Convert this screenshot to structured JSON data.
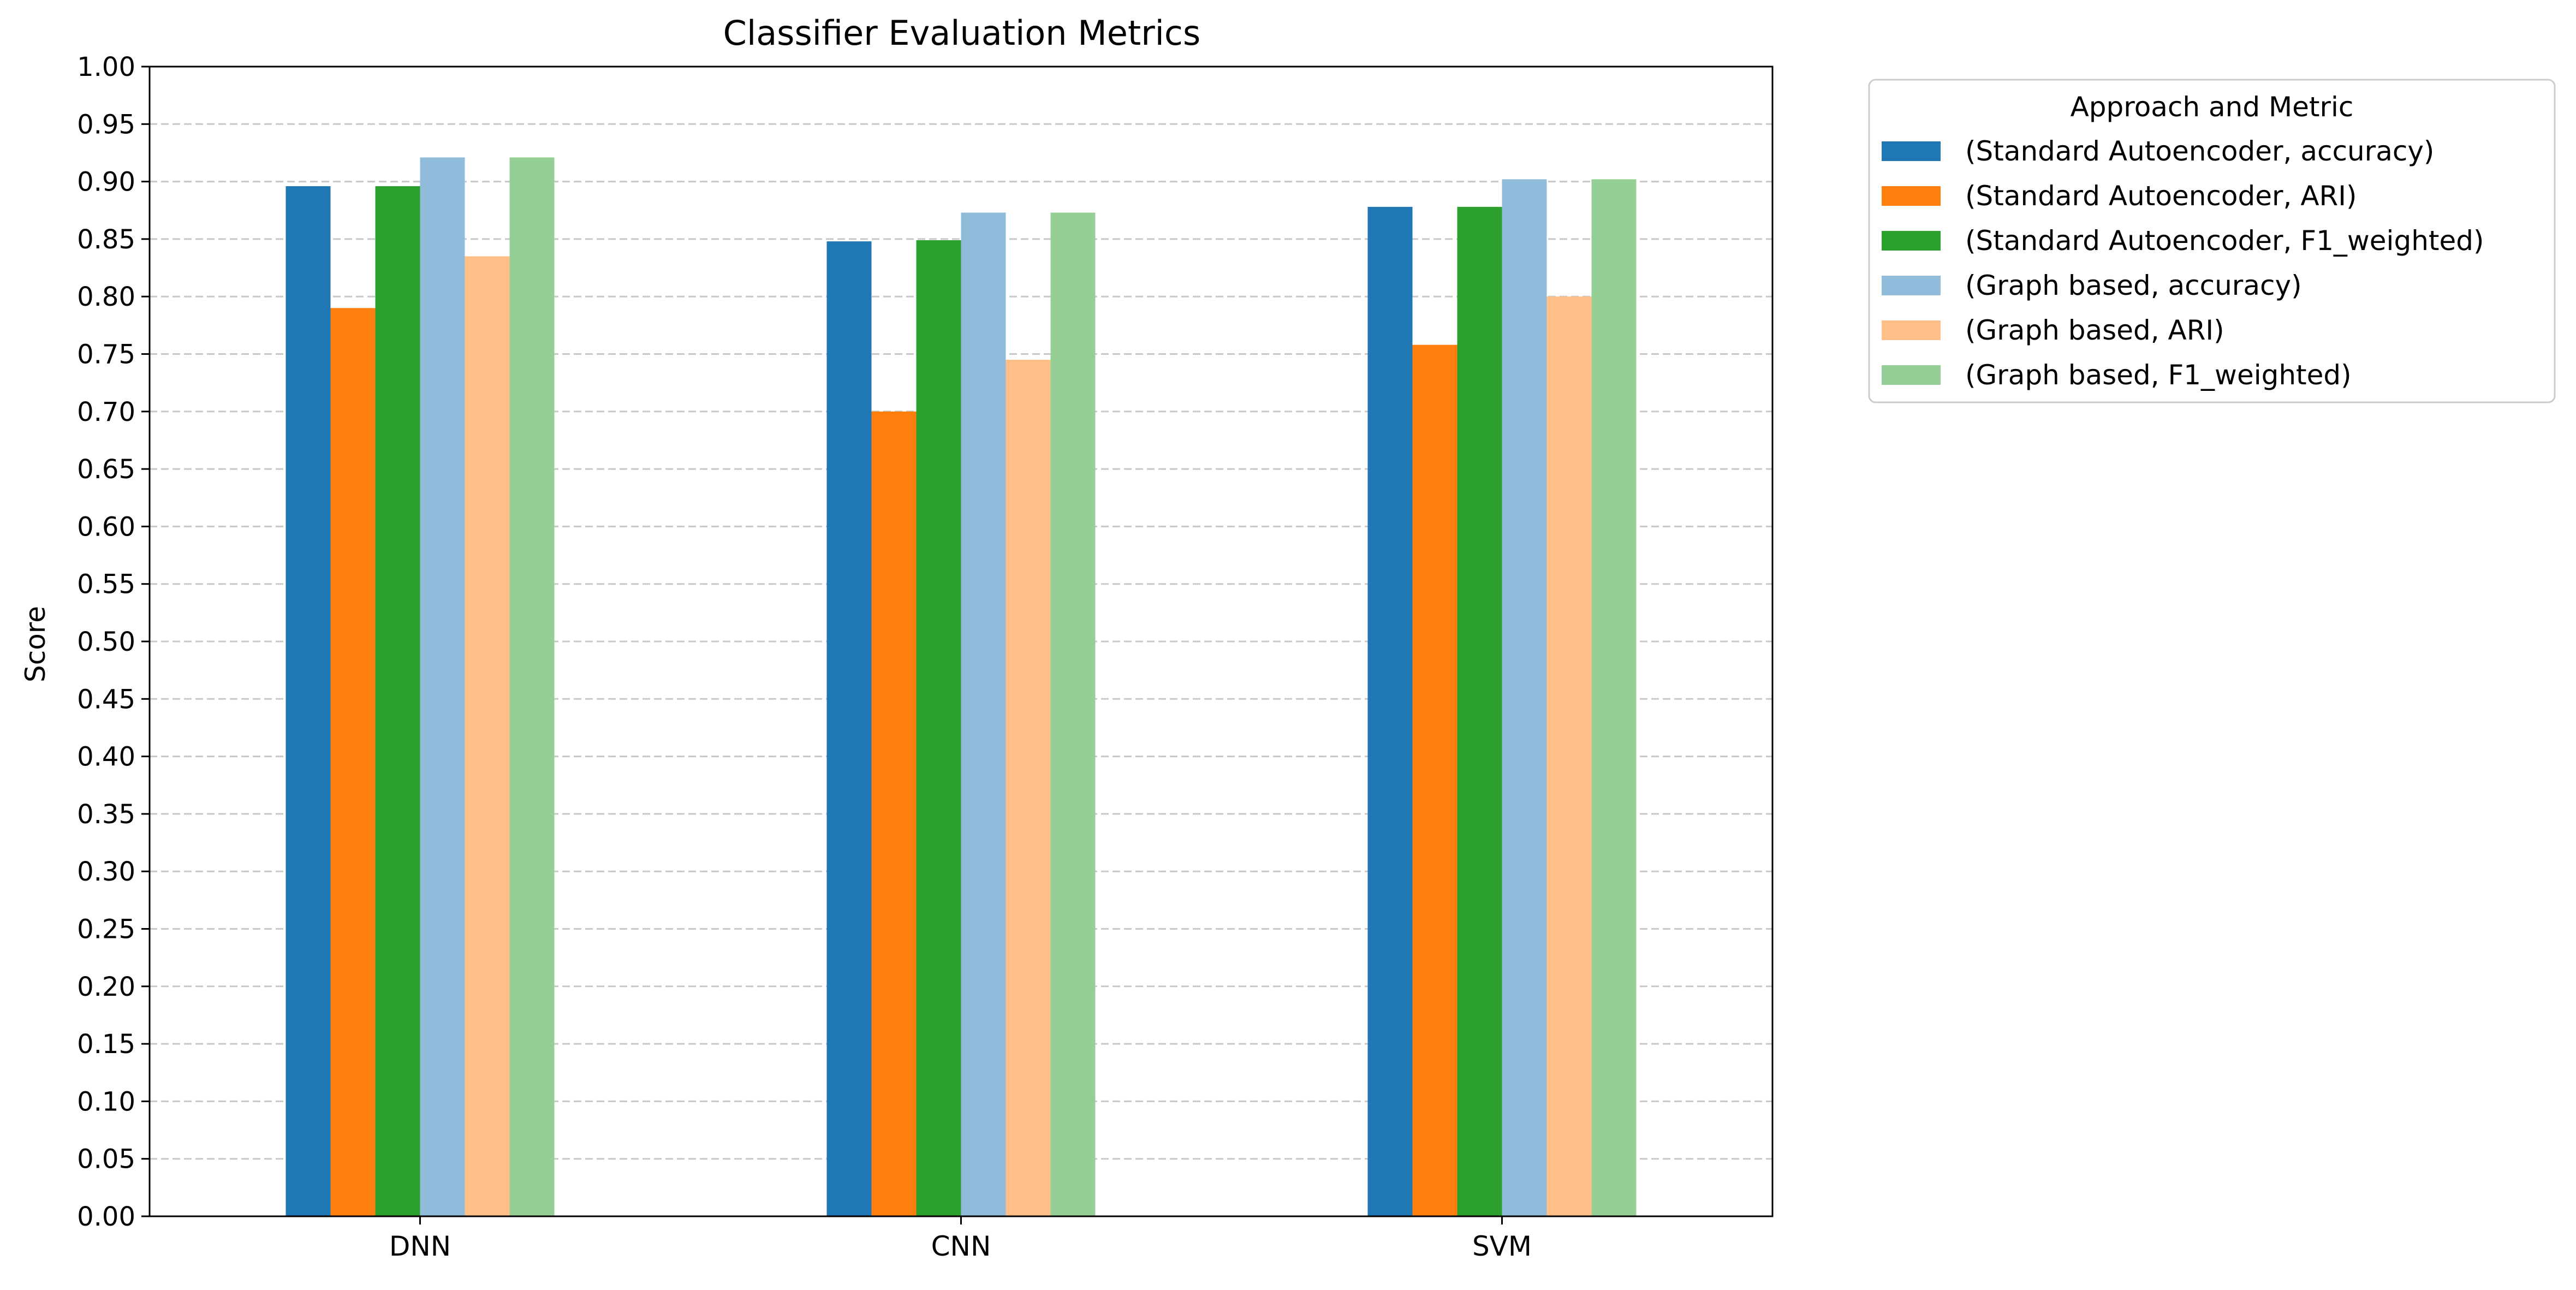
{
  "chart_data": {
    "type": "bar",
    "title": "Classifier Evaluation Metrics",
    "xlabel": "",
    "ylabel": "Score",
    "ylim": [
      0,
      1.0
    ],
    "yticks": [
      "0.00",
      "0.05",
      "0.10",
      "0.15",
      "0.20",
      "0.25",
      "0.30",
      "0.35",
      "0.40",
      "0.45",
      "0.50",
      "0.55",
      "0.60",
      "0.65",
      "0.70",
      "0.75",
      "0.80",
      "0.85",
      "0.90",
      "0.95",
      "1.00"
    ],
    "grid": "y-dashed",
    "categories": [
      "DNN",
      "CNN",
      "SVM"
    ],
    "legend": {
      "title": "Approach and Metric",
      "placement": "outside-right-top"
    },
    "series": [
      {
        "name": "(Standard Autoencoder, accuracy)",
        "color": "#1f77b4",
        "values": [
          0.896,
          0.848,
          0.878
        ]
      },
      {
        "name": "(Standard Autoencoder, ARI)",
        "color": "#ff7f0e",
        "values": [
          0.79,
          0.7,
          0.758
        ]
      },
      {
        "name": "(Standard Autoencoder, F1_weighted)",
        "color": "#2ca02c",
        "values": [
          0.896,
          0.849,
          0.878
        ]
      },
      {
        "name": "(Graph based, accuracy)",
        "color": "#90bbdb",
        "values": [
          0.921,
          0.873,
          0.902
        ]
      },
      {
        "name": "(Graph based, ARI)",
        "color": "#ffbf86",
        "values": [
          0.835,
          0.745,
          0.8
        ]
      },
      {
        "name": "(Graph based, F1_weighted)",
        "color": "#96cf96",
        "values": [
          0.921,
          0.873,
          0.902
        ]
      }
    ]
  }
}
